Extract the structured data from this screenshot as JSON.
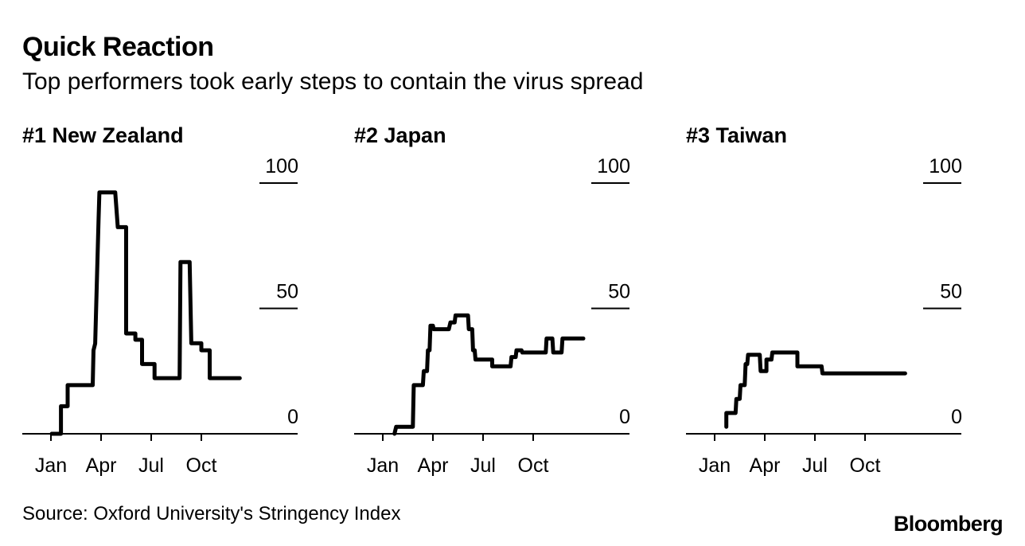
{
  "header": {
    "title": "Quick Reaction",
    "subtitle": "Top performers took early steps to contain the virus spread"
  },
  "footer": {
    "source": "Source: Oxford University's Stringency Index",
    "brand": "Bloomberg"
  },
  "colors": {
    "line": "#000000",
    "background": "#ffffff"
  },
  "chart_data": [
    {
      "type": "line",
      "title": "#1 New Zealand",
      "ylim": [
        0,
        100
      ],
      "yticks": [
        {
          "value": 100,
          "label": "100"
        },
        {
          "value": 50,
          "label": "50"
        },
        {
          "value": 0,
          "label": "0"
        }
      ],
      "xticks": [
        {
          "value": 1,
          "label": "Jan"
        },
        {
          "value": 4,
          "label": "Apr"
        },
        {
          "value": 7,
          "label": "Jul"
        },
        {
          "value": 10,
          "label": "Oct"
        }
      ],
      "xlim": [
        0,
        12.5
      ],
      "series": [
        {
          "name": "New Zealand",
          "points": [
            [
              1.05,
              0
            ],
            [
              1.6,
              0
            ],
            [
              1.6,
              11
            ],
            [
              2.0,
              11
            ],
            [
              2.0,
              19.4
            ],
            [
              3.5,
              19.4
            ],
            [
              3.55,
              33.3
            ],
            [
              3.65,
              36
            ],
            [
              3.85,
              86
            ],
            [
              3.9,
              96.3
            ],
            [
              4.85,
              96.3
            ],
            [
              5.0,
              82.4
            ],
            [
              5.5,
              82.4
            ],
            [
              5.5,
              40
            ],
            [
              6.05,
              40
            ],
            [
              6.05,
              37.5
            ],
            [
              6.45,
              37.5
            ],
            [
              6.45,
              27.8
            ],
            [
              7.2,
              27.8
            ],
            [
              7.2,
              22.2
            ],
            [
              8.7,
              22.2
            ],
            [
              8.75,
              68.5
            ],
            [
              9.3,
              68.5
            ],
            [
              9.4,
              36.1
            ],
            [
              10.0,
              36.1
            ],
            [
              10.0,
              33.3
            ],
            [
              10.5,
              33.3
            ],
            [
              10.5,
              22.2
            ],
            [
              12.3,
              22.2
            ]
          ]
        }
      ]
    },
    {
      "type": "line",
      "title": "#2 Japan",
      "ylim": [
        0,
        100
      ],
      "yticks": [
        {
          "value": 100,
          "label": "100"
        },
        {
          "value": 50,
          "label": "50"
        },
        {
          "value": 0,
          "label": "0"
        }
      ],
      "xticks": [
        {
          "value": 1,
          "label": "Jan"
        },
        {
          "value": 4,
          "label": "Apr"
        },
        {
          "value": 7,
          "label": "Jul"
        },
        {
          "value": 10,
          "label": "Oct"
        }
      ],
      "xlim": [
        0,
        12.5
      ],
      "series": [
        {
          "name": "Japan",
          "points": [
            [
              1.7,
              0
            ],
            [
              1.8,
              2.8
            ],
            [
              2.8,
              2.8
            ],
            [
              2.85,
              19.4
            ],
            [
              3.4,
              19.4
            ],
            [
              3.45,
              25
            ],
            [
              3.65,
              25
            ],
            [
              3.7,
              33.3
            ],
            [
              3.8,
              33.3
            ],
            [
              3.85,
              43.1
            ],
            [
              4.0,
              43.1
            ],
            [
              4.05,
              41.7
            ],
            [
              4.95,
              41.7
            ],
            [
              5.05,
              44.4
            ],
            [
              5.3,
              44.4
            ],
            [
              5.35,
              47.2
            ],
            [
              6.1,
              47.2
            ],
            [
              6.15,
              41.7
            ],
            [
              6.35,
              41.7
            ],
            [
              6.4,
              33.3
            ],
            [
              6.5,
              33.3
            ],
            [
              6.55,
              29.6
            ],
            [
              7.55,
              29.6
            ],
            [
              7.55,
              26.9
            ],
            [
              8.65,
              26.9
            ],
            [
              8.7,
              30.6
            ],
            [
              8.95,
              30.6
            ],
            [
              9.0,
              33.3
            ],
            [
              9.3,
              33.3
            ],
            [
              9.35,
              32.4
            ],
            [
              10.75,
              32.4
            ],
            [
              10.8,
              38
            ],
            [
              11.15,
              38
            ],
            [
              11.2,
              32.4
            ],
            [
              11.7,
              32.4
            ],
            [
              11.75,
              38
            ],
            [
              13.0,
              38
            ]
          ]
        }
      ]
    },
    {
      "type": "line",
      "title": "#3 Taiwan",
      "ylim": [
        0,
        100
      ],
      "yticks": [
        {
          "value": 100,
          "label": "100"
        },
        {
          "value": 50,
          "label": "50"
        },
        {
          "value": 0,
          "label": "0"
        }
      ],
      "xticks": [
        {
          "value": 1,
          "label": "Jan"
        },
        {
          "value": 4,
          "label": "Apr"
        },
        {
          "value": 7,
          "label": "Jul"
        },
        {
          "value": 10,
          "label": "Oct"
        }
      ],
      "xlim": [
        0,
        12.5
      ],
      "series": [
        {
          "name": "Taiwan",
          "points": [
            [
              1.7,
              2.8
            ],
            [
              1.7,
              8.3
            ],
            [
              2.25,
              8.3
            ],
            [
              2.3,
              13.9
            ],
            [
              2.5,
              13.9
            ],
            [
              2.55,
              19.4
            ],
            [
              2.8,
              19.4
            ],
            [
              2.85,
              27.8
            ],
            [
              2.95,
              27.8
            ],
            [
              3.0,
              31.5
            ],
            [
              3.7,
              31.5
            ],
            [
              3.75,
              25
            ],
            [
              4.1,
              25
            ],
            [
              4.1,
              29.6
            ],
            [
              4.4,
              29.6
            ],
            [
              4.45,
              32.4
            ],
            [
              5.95,
              32.4
            ],
            [
              5.95,
              26.9
            ],
            [
              7.4,
              26.9
            ],
            [
              7.45,
              24.1
            ],
            [
              12.4,
              24.1
            ]
          ]
        }
      ]
    }
  ]
}
